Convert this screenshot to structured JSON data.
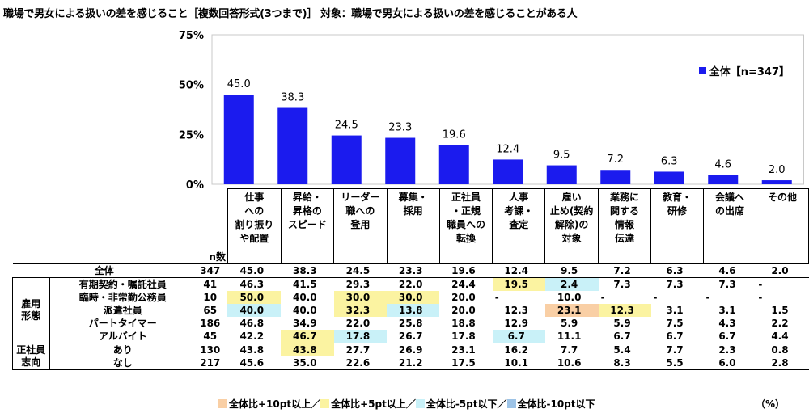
{
  "title": "職場で男女による扱いの差を感じること［複数回答形式(3つまで)］ 対象：職場で男女による扱いの差を感じることがある人",
  "chart_data": {
    "type": "bar",
    "categories": [
      "仕事への割り振りや配置",
      "昇給・昇格のスピード",
      "リーダー職への登用",
      "募集・採用",
      "正社員・正規職員への転換",
      "人事考課・査定",
      "雇い止め(契約解除)の対象",
      "業務に関する情報伝達",
      "教育・研修",
      "会議への出席",
      "その他"
    ],
    "series": [
      {
        "name": "全体【n=347】",
        "values": [
          45.0,
          38.3,
          24.5,
          23.3,
          19.6,
          12.4,
          9.5,
          7.2,
          6.3,
          4.6,
          2.0
        ]
      }
    ],
    "value_labels": [
      "45.0",
      "38.3",
      "24.5",
      "23.3",
      "19.6",
      "12.4",
      "9.5",
      "7.2",
      "6.3",
      "4.6",
      "2.0"
    ],
    "ylim": [
      0,
      75
    ],
    "yticks": [
      "0%",
      "25%",
      "50%",
      "75%"
    ],
    "bar_color": "#1b1bee",
    "legend_position": "top-right"
  },
  "legend_label": "全体【n=347】",
  "header": {
    "n_label": "n数",
    "columns": [
      [
        "仕事",
        "への",
        "割り振り",
        "や配置"
      ],
      [
        "昇給・",
        "昇格の",
        "スピード"
      ],
      [
        "リーダー",
        "職への",
        "登用"
      ],
      [
        "募集・",
        "採用"
      ],
      [
        "正社員",
        "・正規",
        "職員への",
        "転換"
      ],
      [
        "人事",
        "考課・",
        "査定"
      ],
      [
        "雇い",
        "止め(契約",
        "解除)の",
        "対象"
      ],
      [
        "業務に",
        "関する",
        "情報",
        "伝達"
      ],
      [
        "教育・",
        "研修"
      ],
      [
        "会議へ",
        "の出席"
      ],
      [
        "その他"
      ]
    ]
  },
  "groups": [
    {
      "label": "雇用形態",
      "lines": [
        "雇用",
        "形態"
      ]
    },
    {
      "label": "正社員志向",
      "lines": [
        "正社員",
        "志向"
      ]
    }
  ],
  "rows": [
    {
      "group": "",
      "label": "全体",
      "n": "347",
      "values": [
        "45.0",
        "38.3",
        "24.5",
        "23.3",
        "19.6",
        "12.4",
        "9.5",
        "7.2",
        "6.3",
        "4.6",
        "2.0"
      ],
      "hl": [
        "",
        "",
        "",
        "",
        "",
        "",
        "",
        "",
        "",
        "",
        ""
      ]
    },
    {
      "group": "雇用形態",
      "label": "有期契約・嘱託社員",
      "n": "41",
      "values": [
        "46.3",
        "41.5",
        "29.3",
        "22.0",
        "24.4",
        "19.5",
        "2.4",
        "7.3",
        "7.3",
        "7.3",
        "-"
      ],
      "hl": [
        "",
        "",
        "",
        "",
        "",
        "yellow",
        "cyan",
        "",
        "",
        "",
        ""
      ]
    },
    {
      "group": "雇用形態",
      "label": "臨時・非常勤公務員",
      "n": "10",
      "values": [
        "50.0",
        "40.0",
        "30.0",
        "30.0",
        "20.0",
        "-",
        "10.0",
        "-",
        "-",
        "-",
        "-"
      ],
      "hl": [
        "yellow",
        "",
        "yellow",
        "yellow",
        "",
        "",
        "",
        "",
        "",
        "",
        ""
      ]
    },
    {
      "group": "雇用形態",
      "label": "派遣社員",
      "n": "65",
      "values": [
        "40.0",
        "40.0",
        "32.3",
        "13.8",
        "20.0",
        "12.3",
        "23.1",
        "12.3",
        "3.1",
        "3.1",
        "1.5"
      ],
      "hl": [
        "cyan",
        "",
        "yellow",
        "cyan",
        "",
        "",
        "orange",
        "yellow",
        "",
        "",
        ""
      ]
    },
    {
      "group": "雇用形態",
      "label": "パートタイマー",
      "n": "186",
      "values": [
        "46.8",
        "34.9",
        "22.0",
        "25.8",
        "18.8",
        "12.9",
        "5.9",
        "5.9",
        "7.5",
        "4.3",
        "2.2"
      ],
      "hl": [
        "",
        "",
        "",
        "",
        "",
        "",
        "",
        "",
        "",
        "",
        ""
      ]
    },
    {
      "group": "雇用形態",
      "label": "アルバイト",
      "n": "45",
      "values": [
        "42.2",
        "46.7",
        "17.8",
        "26.7",
        "17.8",
        "6.7",
        "11.1",
        "6.7",
        "6.7",
        "6.7",
        "4.4"
      ],
      "hl": [
        "",
        "yellow",
        "cyan",
        "",
        "",
        "cyan",
        "",
        "",
        "",
        "",
        ""
      ]
    },
    {
      "group": "正社員志向",
      "label": "あり",
      "n": "130",
      "values": [
        "43.8",
        "43.8",
        "27.7",
        "26.9",
        "23.1",
        "16.2",
        "7.7",
        "5.4",
        "7.7",
        "2.3",
        "0.8"
      ],
      "hl": [
        "",
        "yellow",
        "",
        "",
        "",
        "",
        "",
        "",
        "",
        "",
        ""
      ]
    },
    {
      "group": "正社員志向",
      "label": "なし",
      "n": "217",
      "values": [
        "45.6",
        "35.0",
        "22.6",
        "21.2",
        "17.5",
        "10.1",
        "10.6",
        "8.3",
        "5.5",
        "6.0",
        "2.8"
      ],
      "hl": [
        "",
        "",
        "",
        "",
        "",
        "",
        "",
        "",
        "",
        "",
        ""
      ]
    }
  ],
  "footnote": [
    {
      "label": "全体比+10pt以上／",
      "color": "#f9cfa5"
    },
    {
      "label": "全体比+5pt以上／",
      "color": "#fbf3a1"
    },
    {
      "label": "全体比-5pt以下／",
      "color": "#c9f1f8"
    },
    {
      "label": "全体比-10pt以下",
      "color": "#9dc3e6"
    }
  ],
  "unit": "（%）"
}
